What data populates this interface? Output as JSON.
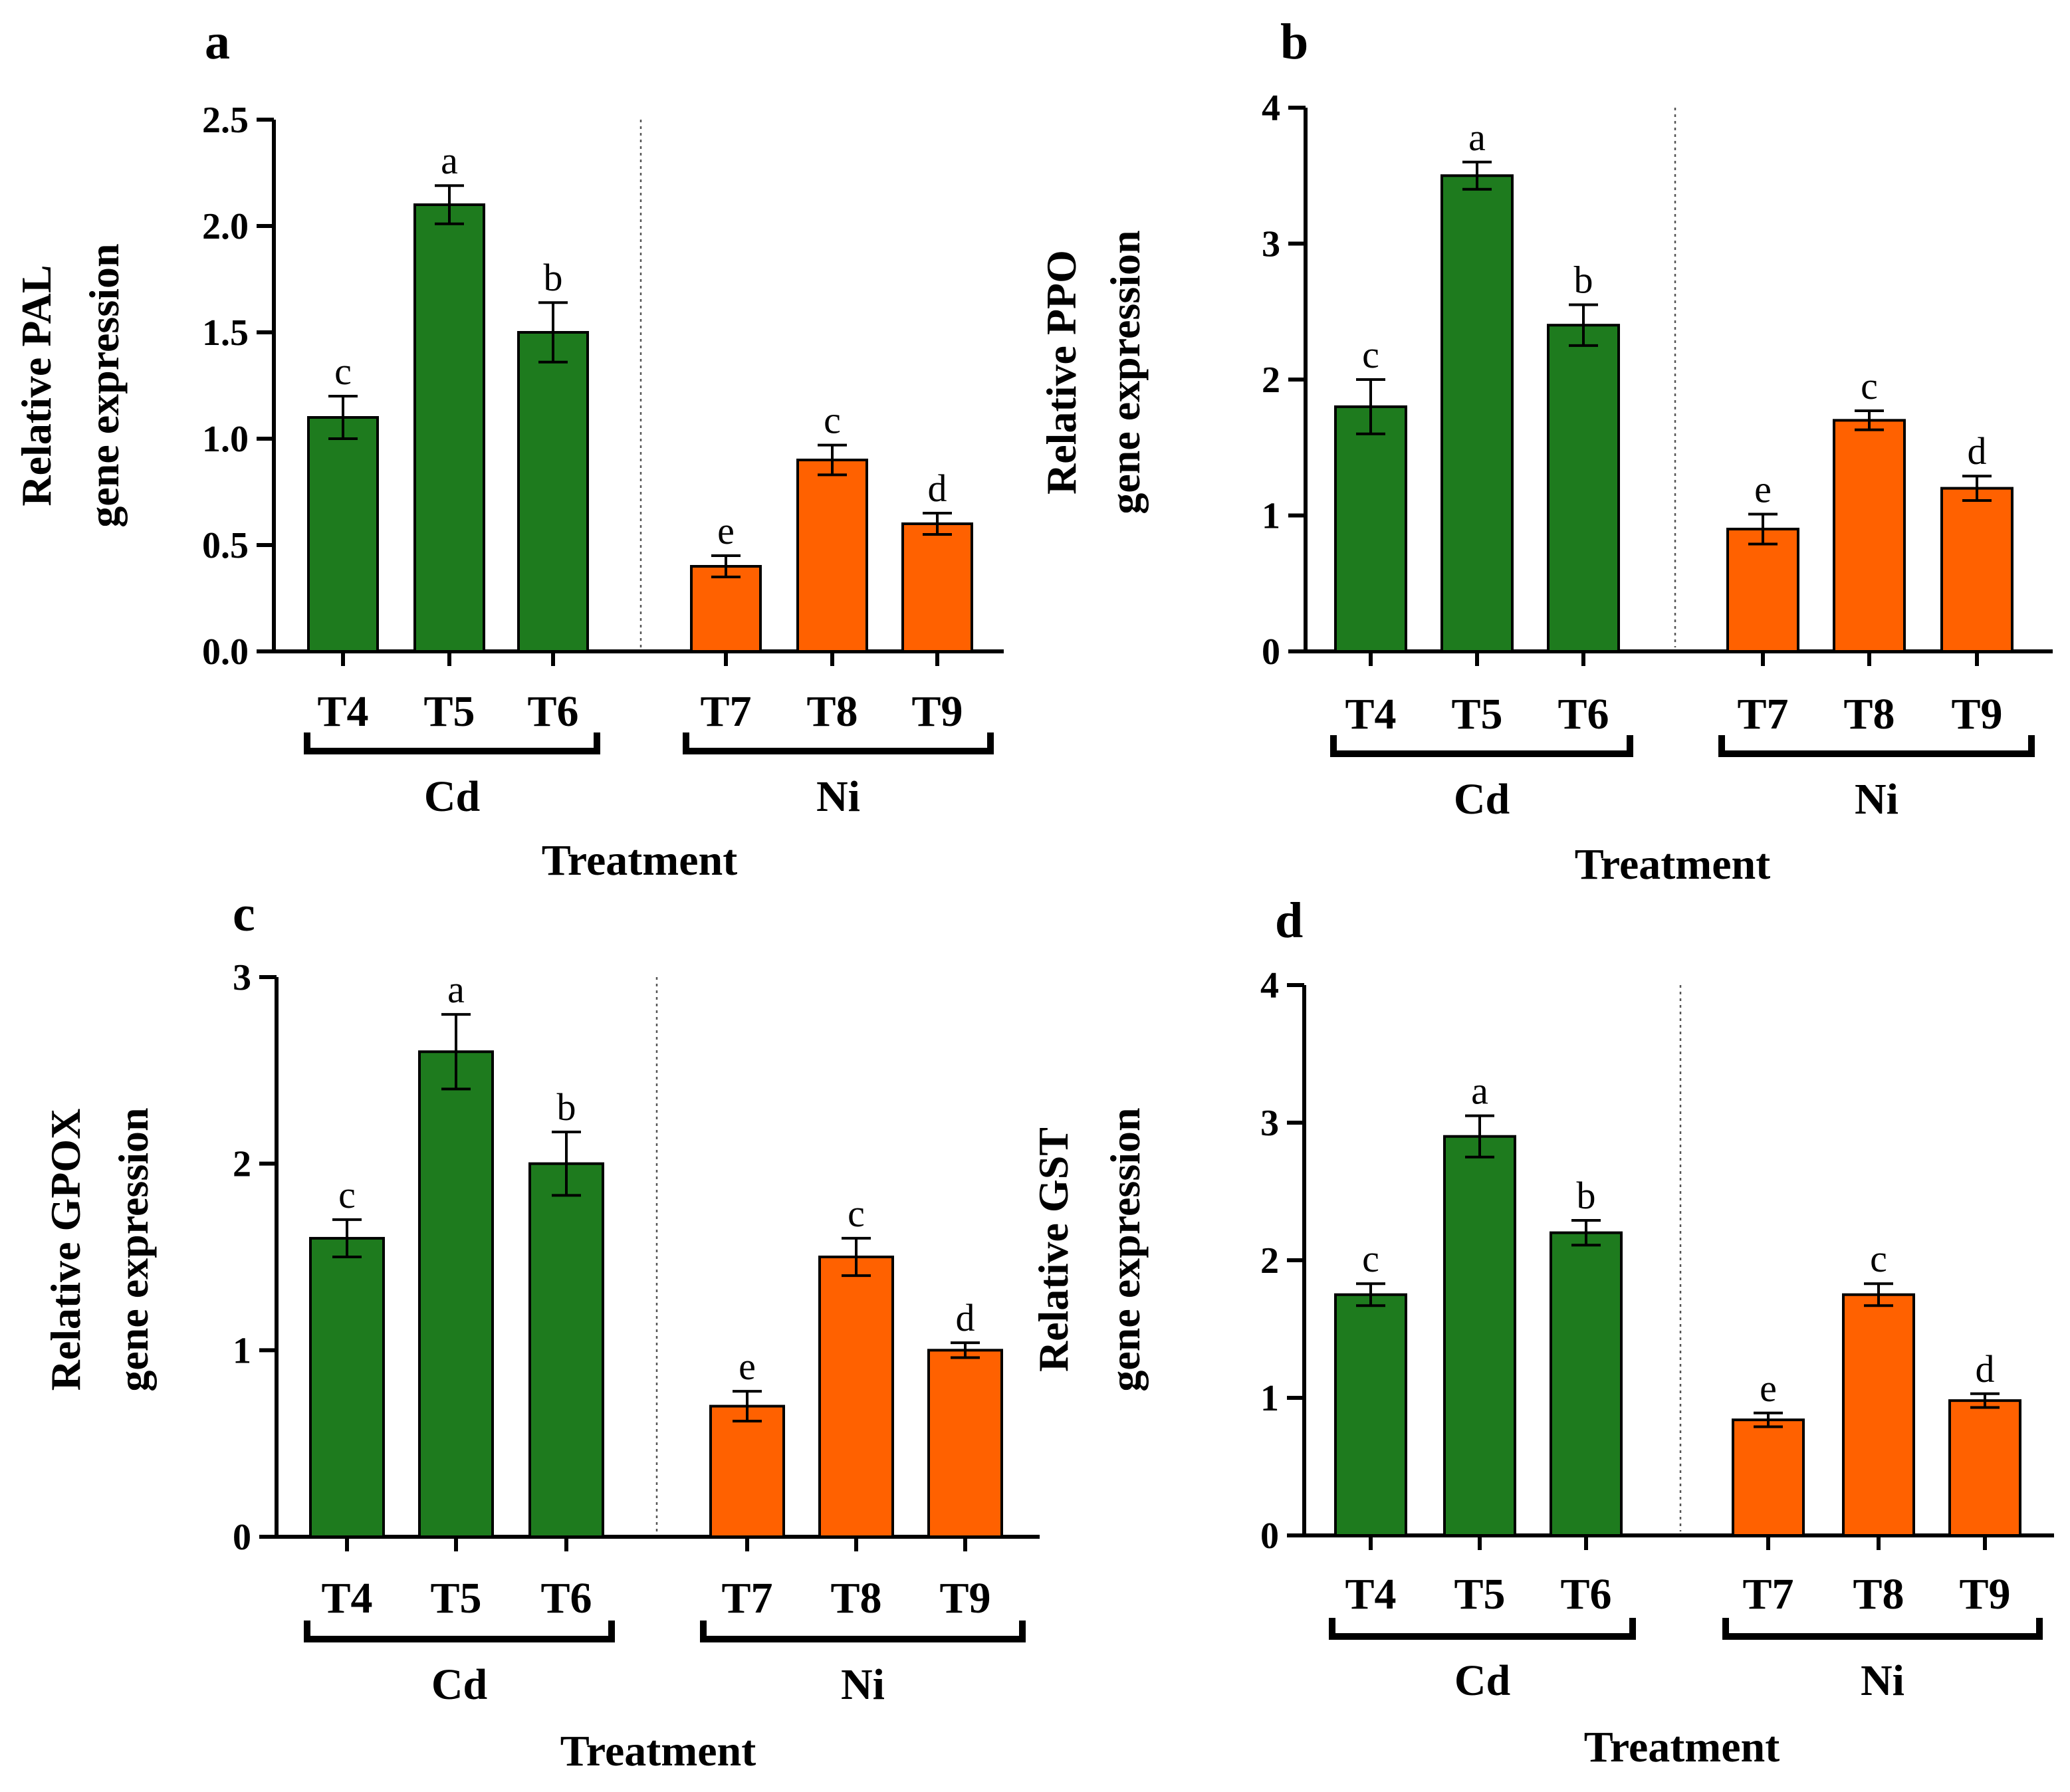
{
  "colors": {
    "cd": "#1e7b1e",
    "ni": "#ff6100",
    "axis": "#000000"
  },
  "chart_data": [
    {
      "type": "bar",
      "panel": "a",
      "ylabel_line1": "Relative PAL",
      "ylabel_line2": "gene expression",
      "xlabel": "Treatment",
      "ylim": [
        0,
        2.5
      ],
      "yticks": [
        "0.0",
        "0.5",
        "1.0",
        "1.5",
        "2.0",
        "2.5"
      ],
      "categories": [
        "T4",
        "T5",
        "T6",
        "T7",
        "T8",
        "T9"
      ],
      "groups": [
        {
          "name": "Cd",
          "categories": [
            "T4",
            "T5",
            "T6"
          ]
        },
        {
          "name": "Ni",
          "categories": [
            "T7",
            "T8",
            "T9"
          ]
        }
      ],
      "values": [
        1.1,
        2.1,
        1.5,
        0.4,
        0.9,
        0.6
      ],
      "errors": [
        0.1,
        0.09,
        0.14,
        0.05,
        0.07,
        0.05
      ],
      "significance": [
        "c",
        "a",
        "b",
        "e",
        "c",
        "d"
      ]
    },
    {
      "type": "bar",
      "panel": "b",
      "ylabel_line1": "Relative PPO",
      "ylabel_line2": "gene expression",
      "xlabel": "Treatment",
      "ylim": [
        0,
        4
      ],
      "yticks": [
        "0",
        "1",
        "2",
        "3",
        "4"
      ],
      "categories": [
        "T4",
        "T5",
        "T6",
        "T7",
        "T8",
        "T9"
      ],
      "groups": [
        {
          "name": "Cd",
          "categories": [
            "T4",
            "T5",
            "T6"
          ]
        },
        {
          "name": "Ni",
          "categories": [
            "T7",
            "T8",
            "T9"
          ]
        }
      ],
      "values": [
        1.8,
        3.5,
        2.4,
        0.9,
        1.7,
        1.2
      ],
      "errors": [
        0.2,
        0.1,
        0.15,
        0.11,
        0.07,
        0.09
      ],
      "significance": [
        "c",
        "a",
        "b",
        "e",
        "c",
        "d"
      ]
    },
    {
      "type": "bar",
      "panel": "c",
      "ylabel_line1": "Relative GPOX",
      "ylabel_line2": "gene expression",
      "xlabel": "Treatment",
      "ylim": [
        0,
        3
      ],
      "yticks": [
        "0",
        "1",
        "2",
        "3"
      ],
      "categories": [
        "T4",
        "T5",
        "T6",
        "T7",
        "T8",
        "T9"
      ],
      "groups": [
        {
          "name": "Cd",
          "categories": [
            "T4",
            "T5",
            "T6"
          ]
        },
        {
          "name": "Ni",
          "categories": [
            "T7",
            "T8",
            "T9"
          ]
        }
      ],
      "values": [
        1.6,
        2.6,
        2.0,
        0.7,
        1.5,
        1.0
      ],
      "errors": [
        0.1,
        0.2,
        0.17,
        0.08,
        0.1,
        0.04
      ],
      "significance": [
        "c",
        "a",
        "b",
        "e",
        "c",
        "d"
      ]
    },
    {
      "type": "bar",
      "panel": "d",
      "ylabel_line1": "Relative GST",
      "ylabel_line2": "gene expression",
      "xlabel": "Treatment",
      "ylim": [
        0,
        4
      ],
      "yticks": [
        "0",
        "1",
        "2",
        "3",
        "4"
      ],
      "categories": [
        "T4",
        "T5",
        "T6",
        "T7",
        "T8",
        "T9"
      ],
      "groups": [
        {
          "name": "Cd",
          "categories": [
            "T4",
            "T5",
            "T6"
          ]
        },
        {
          "name": "Ni",
          "categories": [
            "T7",
            "T8",
            "T9"
          ]
        }
      ],
      "values": [
        1.75,
        2.9,
        2.2,
        0.84,
        1.75,
        0.98
      ],
      "errors": [
        0.08,
        0.15,
        0.09,
        0.05,
        0.08,
        0.05
      ],
      "significance": [
        "c",
        "a",
        "b",
        "e",
        "c",
        "d"
      ]
    }
  ]
}
